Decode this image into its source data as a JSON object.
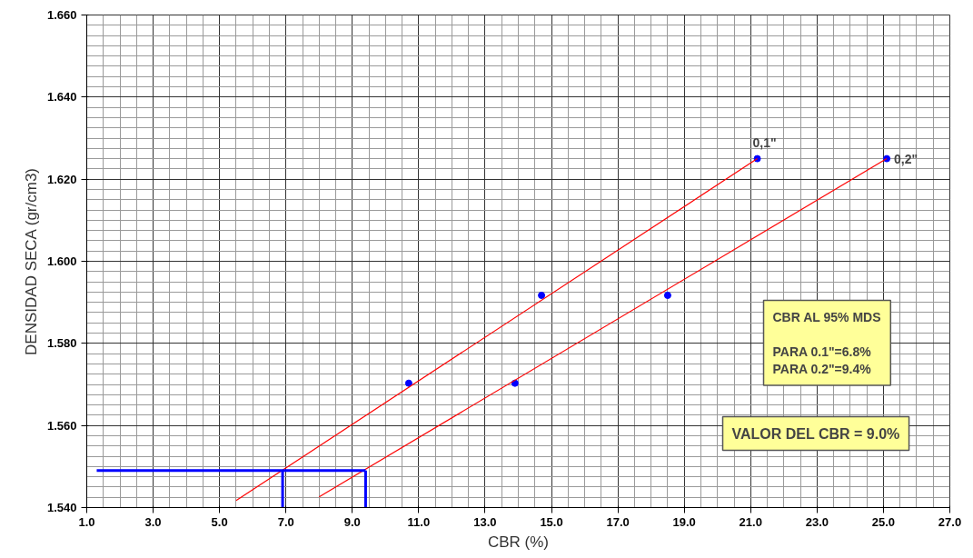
{
  "chart_data": {
    "type": "scatter",
    "xlabel": "CBR (%)",
    "ylabel": "DENSIDAD SECA (gr/cm3)",
    "xlim": [
      1.0,
      27.0
    ],
    "ylim": [
      1.54,
      1.66
    ],
    "xticks": [
      {
        "value": 1,
        "label": "1.0"
      },
      {
        "value": 3,
        "label": "3.0"
      },
      {
        "value": 5,
        "label": "5.0"
      },
      {
        "value": 7,
        "label": "7.0"
      },
      {
        "value": 9,
        "label": "9.0"
      },
      {
        "value": 11,
        "label": "11.0"
      },
      {
        "value": 13,
        "label": "13.0"
      },
      {
        "value": 15,
        "label": "15.0"
      },
      {
        "value": 17,
        "label": "17.0"
      },
      {
        "value": 19,
        "label": "19.0"
      },
      {
        "value": 21,
        "label": "21.0"
      },
      {
        "value": 23,
        "label": "23.0"
      },
      {
        "value": 25,
        "label": "25.0"
      },
      {
        "value": 27,
        "label": "27.0"
      }
    ],
    "yticks": [
      {
        "value": 1.54,
        "label": "1.540"
      },
      {
        "value": 1.56,
        "label": "1.560"
      },
      {
        "value": 1.58,
        "label": "1.580"
      },
      {
        "value": 1.6,
        "label": "1.600"
      },
      {
        "value": 1.62,
        "label": "1.620"
      },
      {
        "value": 1.64,
        "label": "1.640"
      },
      {
        "value": 1.66,
        "label": "1.660"
      }
    ],
    "grid": true,
    "marker": "circle",
    "series": [
      {
        "color": "#0000ff",
        "x": [
          10.7,
          14.7,
          21.2
        ],
        "values": [
          1.5703,
          1.5917,
          1.625
        ]
      },
      {
        "color": "#0000ff",
        "x": [
          13.9,
          18.5,
          25.1
        ],
        "values": [
          1.5703,
          1.5917,
          1.625
        ]
      },
      {
        "type": "line",
        "marker": "none",
        "color": "#ff0000",
        "x": [
          5.5,
          21.2
        ],
        "values": [
          1.5417,
          1.625
        ]
      },
      {
        "type": "line",
        "marker": "none",
        "color": "#ff0000",
        "x": [
          8.0,
          25.1
        ],
        "values": [
          1.5426,
          1.625
        ]
      },
      {
        "type": "line",
        "marker": "none",
        "color": "#0000ff",
        "x": [
          1.3,
          9.4
        ],
        "values": [
          1.549,
          1.549
        ]
      },
      {
        "type": "line",
        "marker": "none",
        "color": "#0000ff",
        "x": [
          6.9,
          6.9
        ],
        "values": [
          1.54,
          1.549
        ]
      },
      {
        "type": "line",
        "marker": "none",
        "color": "#0000ff",
        "x": [
          9.4,
          9.4
        ],
        "values": [
          1.54,
          1.549
        ]
      }
    ],
    "annotations": [
      {
        "text": "0,1\"",
        "x": 21.2,
        "y": 1.625
      },
      {
        "text": "0,2\"",
        "x": 25.1,
        "y": 1.625
      },
      "CBR AL 95% MDS\n\nPARA 0.1\"=6.8%\nPARA 0.2\"=9.4%",
      "VALOR DEL CBR = 9.0%"
    ]
  }
}
